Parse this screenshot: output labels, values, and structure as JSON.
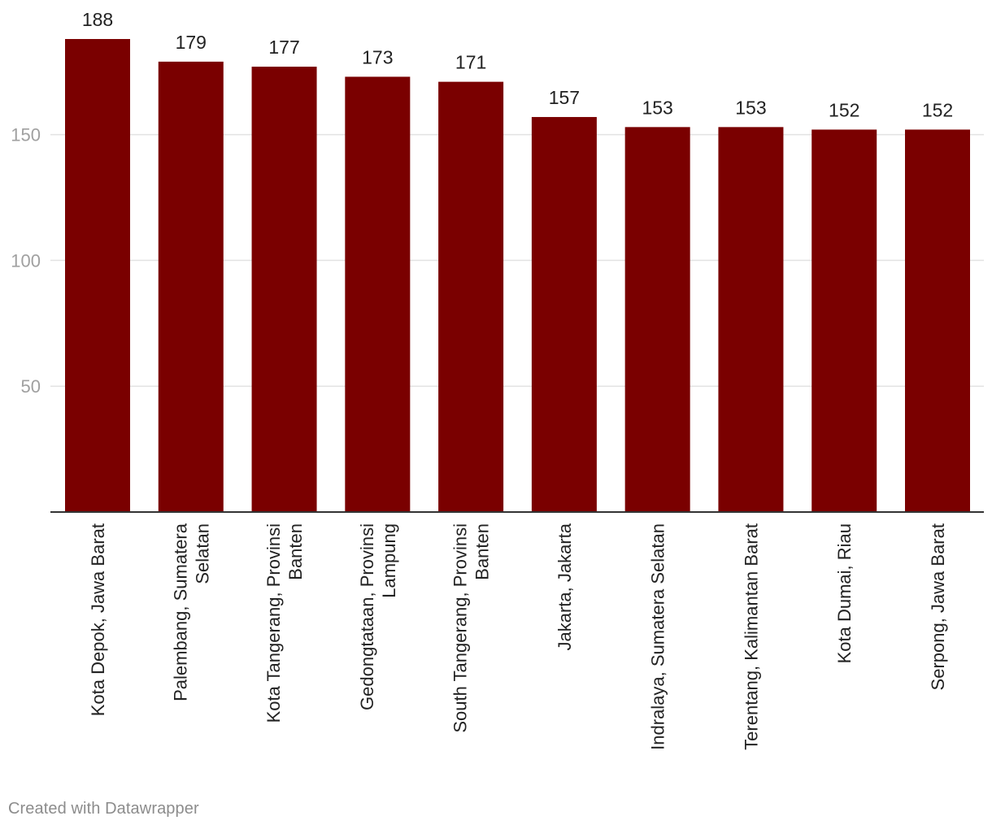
{
  "footer": {
    "credit": "Created with Datawrapper"
  },
  "colors": {
    "bar": "#7a0000",
    "gridline": "#e3e3e3",
    "axis_line": "#333333",
    "tick_label": "#a0a0a0",
    "value_label": "#222222",
    "category_label": "#222222"
  },
  "chart_data": {
    "type": "bar",
    "title": "",
    "xlabel": "",
    "ylabel": "",
    "ylim": [
      0,
      188
    ],
    "yticks": [
      50,
      100,
      150
    ],
    "grid": true,
    "categories": [
      [
        "Kota Depok, Jawa Barat"
      ],
      [
        "Palembang, Sumatera",
        "Selatan"
      ],
      [
        "Kota Tangerang, Provinsi",
        "Banten"
      ],
      [
        "Gedongtataan, Provinsi",
        "Lampung"
      ],
      [
        "South Tangerang, Provinsi",
        "Banten"
      ],
      [
        "Jakarta, Jakarta"
      ],
      [
        "Indralaya, Sumatera Selatan"
      ],
      [
        "Terentang, Kalimantan Barat"
      ],
      [
        "Kota Dumai, Riau"
      ],
      [
        "Serpong, Jawa Barat"
      ]
    ],
    "values": [
      188,
      179,
      177,
      173,
      171,
      157,
      153,
      153,
      152,
      152
    ]
  }
}
